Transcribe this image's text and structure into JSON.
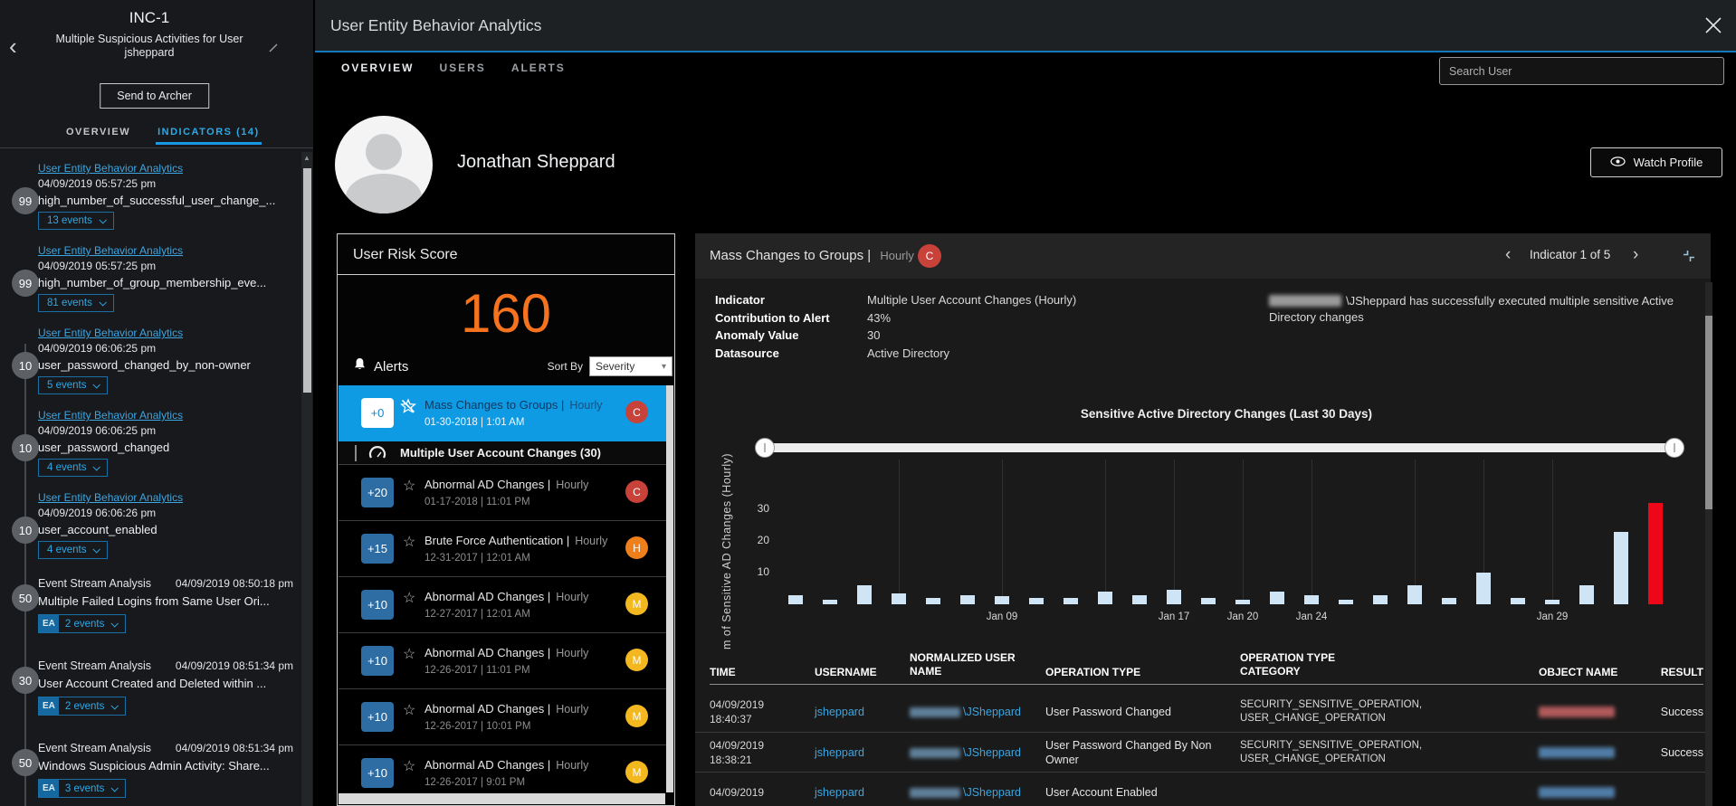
{
  "colors": {
    "accent_blue": "#1899e8",
    "titlebar_blue": "#1478bd",
    "selected_alert_bg": "#0f9be4",
    "score_orange": "#f5731e",
    "link_blue": "#3da5e0",
    "severity": {
      "C": "#c8423a",
      "H": "#ef7f1a",
      "M": "#f3b71f"
    }
  },
  "icons": {
    "back_chevron": "‹",
    "pager_left": "‹",
    "pager_right": "›",
    "star": "☆",
    "scroll_up_arrow": "▲",
    "select_caret": "▾",
    "bell": "bell-icon"
  },
  "incident": {
    "id": "INC-1",
    "title": "Multiple Suspicious Activities for User jsheppard",
    "send_to_archer": "Send to Archer",
    "ea_badge": "EA",
    "tabs": [
      {
        "label": "OVERVIEW",
        "active": false
      },
      {
        "label": "INDICATORS (14)",
        "active": true
      }
    ],
    "indicators": [
      {
        "score": "99",
        "source": "User Entity Behavior Analytics",
        "time": "04/09/2019 05:57:25 pm",
        "name": "high_number_of_successful_user_change_...",
        "events": "13 events",
        "ea": false
      },
      {
        "score": "99",
        "source": "User Entity Behavior Analytics",
        "time": "04/09/2019 05:57:25 pm",
        "name": "high_number_of_group_membership_eve...",
        "events": "81 events",
        "ea": false
      },
      {
        "score": "10",
        "source": "User Entity Behavior Analytics",
        "time": "04/09/2019 06:06:25 pm",
        "name": "user_password_changed_by_non-owner",
        "events": "5 events",
        "ea": false
      },
      {
        "score": "10",
        "source": "User Entity Behavior Analytics",
        "time": "04/09/2019 06:06:25 pm",
        "name": "user_password_changed",
        "events": "4 events",
        "ea": false
      },
      {
        "score": "10",
        "source": "User Entity Behavior Analytics",
        "time": "04/09/2019 06:06:26 pm",
        "name": "user_account_enabled",
        "events": "4 events",
        "ea": false
      },
      {
        "score": "50",
        "source": "Event Stream Analysis",
        "time": "04/09/2019 08:50:18 pm",
        "name": "Multiple Failed Logins from Same User Ori...",
        "events": "2 events",
        "ea": true
      },
      {
        "score": "30",
        "source": "Event Stream Analysis",
        "time": "04/09/2019 08:51:34 pm",
        "name": "User Account Created and Deleted within ...",
        "events": "2 events",
        "ea": true
      },
      {
        "score": "50",
        "source": "Event Stream Analysis",
        "time": "04/09/2019 08:51:34 pm",
        "name": "Windows Suspicious Admin Activity: Share...",
        "events": "3 events",
        "ea": true
      }
    ]
  },
  "ueba": {
    "window_title": "User Entity Behavior Analytics",
    "nav_tabs": [
      {
        "label": "OVERVIEW",
        "active": true
      },
      {
        "label": "USERS",
        "active": false
      },
      {
        "label": "ALERTS",
        "active": false
      }
    ],
    "search_placeholder": "Search User",
    "profile": {
      "name": "Jonathan Sheppard",
      "watch_button": "Watch Profile"
    },
    "risk_panel": {
      "title": "User Risk Score",
      "score": "160",
      "alerts_label": "Alerts",
      "sort_by_label": "Sort By",
      "sort_value": "Severity",
      "tooltip": {
        "label": "Multiple User Account Changes (30)"
      },
      "alerts": [
        {
          "delta": "+0",
          "title": "Mass Changes to Groups |",
          "frequency": "Hourly",
          "time": "01-30-2018 | 1:01 AM",
          "severity": "C",
          "selected": true
        },
        {
          "delta": "+20",
          "title": "Abnormal AD Changes |",
          "frequency": "Hourly",
          "time": "01-17-2018 | 11:01 PM",
          "severity": "C",
          "selected": false
        },
        {
          "delta": "+15",
          "title": "Brute Force Authentication |",
          "frequency": "Hourly",
          "time": "12-31-2017 | 12:01 AM",
          "severity": "H",
          "selected": false
        },
        {
          "delta": "+10",
          "title": "Abnormal AD Changes |",
          "frequency": "Hourly",
          "time": "12-27-2017 | 12:01 AM",
          "severity": "M",
          "selected": false
        },
        {
          "delta": "+10",
          "title": "Abnormal AD Changes |",
          "frequency": "Hourly",
          "time": "12-26-2017 | 11:01 PM",
          "severity": "M",
          "selected": false
        },
        {
          "delta": "+10",
          "title": "Abnormal AD Changes |",
          "frequency": "Hourly",
          "time": "12-26-2017 | 10:01 PM",
          "severity": "M",
          "selected": false
        },
        {
          "delta": "+10",
          "title": "Abnormal AD Changes |",
          "frequency": "Hourly",
          "time": "12-26-2017 | 9:01 PM",
          "severity": "M",
          "selected": false
        }
      ]
    },
    "indicator_panel": {
      "title": "Mass Changes to Groups |",
      "frequency": "Hourly",
      "severity": "C",
      "pager_text": "Indicator 1 of 5",
      "details": [
        {
          "label": "Indicator",
          "value": "Multiple User Account Changes (Hourly)"
        },
        {
          "label": "Contribution to Alert",
          "value": "43%"
        },
        {
          "label": "Anomaly Value",
          "value": "30"
        },
        {
          "label": "Datasource",
          "value": "Active Directory"
        }
      ],
      "description": {
        "redacted_prefix": true,
        "text": "\\JSheppard has successfully executed multiple sensitive Active Directory changes"
      }
    }
  },
  "chart_data": {
    "type": "bar",
    "title": "Sensitive Active Directory Changes (Last 30 Days)",
    "ylabel": "m of Sensitive AD Changes (Hourly)",
    "xlabel": "",
    "yticks": [
      10,
      20,
      30
    ],
    "ylim": [
      0,
      35
    ],
    "grid": true,
    "values": [
      3,
      1.5,
      6,
      3.5,
      2,
      3,
      2.5,
      2,
      2,
      4,
      3,
      4.5,
      2,
      1.5,
      4,
      3,
      1.5,
      3,
      6,
      2,
      10,
      2,
      1.5,
      6,
      23,
      32
    ],
    "x_tick_labels": [
      {
        "label": "Jan 09",
        "index": 6
      },
      {
        "label": "Jan 17",
        "index": 11
      },
      {
        "label": "Jan 20",
        "index": 13
      },
      {
        "label": "Jan 24",
        "index": 15
      },
      {
        "label": "Jan 29",
        "index": 22
      }
    ],
    "bar_color": "#cfe4f4",
    "highlight": {
      "index": 25,
      "color": "#ee0718"
    },
    "grid_indices": [
      3,
      6,
      9,
      11,
      13,
      15,
      18,
      20,
      22
    ],
    "time_slider": {
      "full_range_selected": true
    }
  },
  "table": {
    "columns": [
      "TIME",
      "USERNAME",
      "NORMALIZED USER NAME",
      "OPERATION TYPE",
      "OPERATION TYPE CATEGORY",
      "OBJECT NAME",
      "RESULT"
    ],
    "rows": [
      {
        "time_date": "04/09/2019",
        "time_clock": "18:40:37",
        "username": "jsheppard",
        "normalized_redacted": true,
        "normalized": "\\JSheppard",
        "operation": "User Password Changed",
        "category": "SECURITY_SENSITIVE_OPERATION, USER_CHANGE_OPERATION",
        "object_redacted": true,
        "result": "Success"
      },
      {
        "time_date": "04/09/2019",
        "time_clock": "18:38:21",
        "username": "jsheppard",
        "normalized_redacted": true,
        "normalized": "\\JSheppard",
        "operation": "User Password Changed By Non Owner",
        "category": "SECURITY_SENSITIVE_OPERATION, USER_CHANGE_OPERATION",
        "object_redacted": true,
        "result": "Success"
      },
      {
        "time_date": "04/09/2019",
        "time_clock": "",
        "username": "jsheppard",
        "normalized_redacted": true,
        "normalized": "\\JSheppard",
        "operation": "User Account Enabled",
        "category": "",
        "object_redacted": true,
        "result": ""
      }
    ]
  }
}
